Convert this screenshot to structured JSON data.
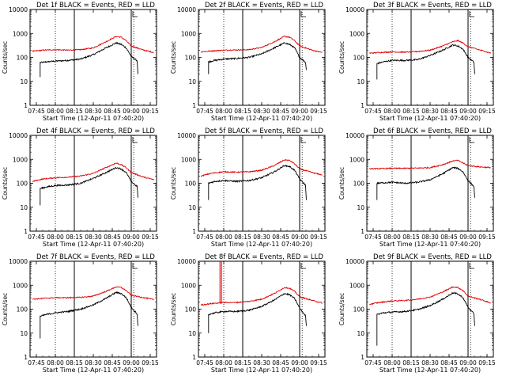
{
  "figure": {
    "layout": "3x3 grid",
    "background": "#ffffff"
  },
  "style": {
    "events_color": "#000000",
    "lld_color": "#e00000",
    "axis_color": "#000000"
  },
  "chart_data": [
    {
      "type": "line",
      "title": "Det 1f BLACK = Events, RED = LLD",
      "xlabel": "Start Time (12-Apr-11 07:40:20)",
      "ylabel": "Counts/sec",
      "yscale": "log",
      "ylim": [
        1,
        10000
      ],
      "xlim": [
        "07:40",
        "09:20"
      ],
      "x_ticks": [
        "07:45",
        "08:00",
        "08:15",
        "08:30",
        "08:45",
        "09:00",
        "09:15"
      ],
      "y_ticks": [
        "1",
        "10",
        "100",
        "1000",
        "10000"
      ],
      "dotted_vlines": [
        "08:00",
        "09:02"
      ],
      "solid_vlines": [
        "08:15",
        "09:00"
      ],
      "legend": "top-right",
      "spike_at": null,
      "series": [
        {
          "name": "Events",
          "color": "#000000",
          "x": [
            "07:48",
            "07:53",
            "08:00",
            "08:10",
            "08:20",
            "08:30",
            "08:40",
            "08:48",
            "08:52",
            "08:56",
            "09:00",
            "09:05"
          ],
          "y": [
            60,
            65,
            70,
            75,
            85,
            130,
            250,
            400,
            350,
            250,
            110,
            70
          ],
          "start_drop": 15,
          "end_drop": 20
        },
        {
          "name": "LLD",
          "color": "#e00000",
          "x": [
            "07:42",
            "07:50",
            "08:00",
            "08:10",
            "08:20",
            "08:30",
            "08:40",
            "08:48",
            "08:52",
            "08:56",
            "09:00",
            "09:10",
            "09:18"
          ],
          "y": [
            180,
            200,
            210,
            200,
            210,
            250,
            450,
            750,
            700,
            500,
            300,
            200,
            160
          ]
        }
      ]
    },
    {
      "type": "line",
      "title": "Det 2f BLACK = Events, RED = LLD",
      "xlabel": "Start Time (12-Apr-11 07:40:20)",
      "ylabel": "Counts/sec",
      "yscale": "log",
      "ylim": [
        1,
        10000
      ],
      "xlim": [
        "07:40",
        "09:20"
      ],
      "x_ticks": [
        "07:45",
        "08:00",
        "08:15",
        "08:30",
        "08:45",
        "09:00",
        "09:15"
      ],
      "y_ticks": [
        "1",
        "10",
        "100",
        "1000",
        "10000"
      ],
      "dotted_vlines": [
        "08:00",
        "09:02"
      ],
      "solid_vlines": [
        "08:15",
        "09:00"
      ],
      "legend": "top-right",
      "spike_at": null,
      "series": [
        {
          "name": "Events",
          "color": "#000000",
          "x": [
            "07:48",
            "07:53",
            "08:00",
            "08:10",
            "08:20",
            "08:30",
            "08:40",
            "08:48",
            "08:52",
            "08:56",
            "09:00",
            "09:05"
          ],
          "y": [
            65,
            75,
            85,
            90,
            100,
            140,
            250,
            400,
            350,
            250,
            100,
            60
          ],
          "start_drop": 20,
          "end_drop": 30
        },
        {
          "name": "LLD",
          "color": "#e00000",
          "x": [
            "07:42",
            "07:50",
            "08:00",
            "08:10",
            "08:20",
            "08:30",
            "08:40",
            "08:48",
            "08:52",
            "08:56",
            "09:00",
            "09:10",
            "09:18"
          ],
          "y": [
            170,
            185,
            200,
            205,
            210,
            260,
            450,
            750,
            700,
            500,
            300,
            200,
            160
          ]
        }
      ]
    },
    {
      "type": "line",
      "title": "Det 3f BLACK = Events, RED = LLD",
      "xlabel": "Start Time (12-Apr-11 07:40:20)",
      "ylabel": "Counts/sec",
      "yscale": "log",
      "ylim": [
        1,
        10000
      ],
      "xlim": [
        "07:40",
        "09:20"
      ],
      "x_ticks": [
        "07:45",
        "08:00",
        "08:15",
        "08:30",
        "08:45",
        "09:00",
        "09:15"
      ],
      "y_ticks": [
        "1",
        "10",
        "100",
        "1000",
        "10000"
      ],
      "dotted_vlines": [
        "08:00",
        "09:02"
      ],
      "solid_vlines": [
        "08:15",
        "09:00"
      ],
      "legend": "top-right",
      "spike_at": null,
      "series": [
        {
          "name": "Events",
          "color": "#000000",
          "x": [
            "07:48",
            "07:53",
            "08:00",
            "08:10",
            "08:20",
            "08:30",
            "08:40",
            "08:48",
            "08:52",
            "08:56",
            "09:00",
            "09:05"
          ],
          "y": [
            55,
            65,
            75,
            75,
            80,
            120,
            200,
            330,
            300,
            220,
            100,
            60
          ],
          "start_drop": 12,
          "end_drop": 20
        },
        {
          "name": "LLD",
          "color": "#e00000",
          "x": [
            "07:42",
            "07:50",
            "08:00",
            "08:10",
            "08:20",
            "08:30",
            "08:40",
            "08:48",
            "08:52",
            "08:56",
            "09:00",
            "09:10",
            "09:18"
          ],
          "y": [
            150,
            160,
            170,
            165,
            175,
            200,
            300,
            450,
            500,
            400,
            280,
            200,
            150
          ]
        }
      ]
    },
    {
      "type": "line",
      "title": "Det 4f BLACK = Events, RED = LLD",
      "xlabel": "Start Time (12-Apr-11 07:40:20)",
      "ylabel": "Counts/sec",
      "yscale": "log",
      "ylim": [
        1,
        10000
      ],
      "xlim": [
        "07:40",
        "09:20"
      ],
      "x_ticks": [
        "07:45",
        "08:00",
        "08:15",
        "08:30",
        "08:45",
        "09:00",
        "09:15"
      ],
      "y_ticks": [
        "1",
        "10",
        "100",
        "1000",
        "10000"
      ],
      "dotted_vlines": [
        "08:00",
        "09:02"
      ],
      "solid_vlines": [
        "08:15",
        "09:00"
      ],
      "legend": "top-right",
      "spike_at": null,
      "series": [
        {
          "name": "Events",
          "color": "#000000",
          "x": [
            "07:48",
            "07:53",
            "08:00",
            "08:10",
            "08:20",
            "08:30",
            "08:40",
            "08:48",
            "08:52",
            "08:56",
            "09:00",
            "09:05"
          ],
          "y": [
            60,
            70,
            80,
            85,
            100,
            160,
            280,
            450,
            400,
            280,
            120,
            70
          ],
          "start_drop": 12,
          "end_drop": 25
        },
        {
          "name": "LLD",
          "color": "#e00000",
          "x": [
            "07:42",
            "07:50",
            "08:00",
            "08:10",
            "08:20",
            "08:30",
            "08:40",
            "08:48",
            "08:52",
            "08:56",
            "09:00",
            "09:10",
            "09:18"
          ],
          "y": [
            120,
            150,
            170,
            180,
            200,
            260,
            450,
            700,
            600,
            450,
            280,
            180,
            140
          ]
        }
      ]
    },
    {
      "type": "line",
      "title": "Det 5f BLACK = Events, RED = LLD",
      "xlabel": "Start Time (12-Apr-11 07:40:20)",
      "ylabel": "Counts/sec",
      "yscale": "log",
      "ylim": [
        1,
        10000
      ],
      "xlim": [
        "07:40",
        "09:20"
      ],
      "x_ticks": [
        "07:45",
        "08:00",
        "08:15",
        "08:30",
        "08:45",
        "09:00",
        "09:15"
      ],
      "y_ticks": [
        "1",
        "10",
        "100",
        "1000",
        "10000"
      ],
      "dotted_vlines": [
        "08:00",
        "09:02"
      ],
      "solid_vlines": [
        "08:15",
        "09:00"
      ],
      "legend": "top-right",
      "spike_at": null,
      "series": [
        {
          "name": "Events",
          "color": "#000000",
          "x": [
            "07:48",
            "07:53",
            "08:00",
            "08:10",
            "08:20",
            "08:30",
            "08:40",
            "08:48",
            "08:52",
            "08:56",
            "09:00",
            "09:05"
          ],
          "y": [
            100,
            120,
            130,
            120,
            130,
            170,
            300,
            550,
            500,
            350,
            150,
            80
          ],
          "start_drop": 20,
          "end_drop": 20
        },
        {
          "name": "LLD",
          "color": "#e00000",
          "x": [
            "07:42",
            "07:50",
            "08:00",
            "08:10",
            "08:20",
            "08:30",
            "08:40",
            "08:48",
            "08:52",
            "08:56",
            "09:00",
            "09:10",
            "09:18"
          ],
          "y": [
            200,
            260,
            300,
            290,
            300,
            350,
            550,
            950,
            900,
            650,
            400,
            280,
            220
          ]
        }
      ]
    },
    {
      "type": "line",
      "title": "Det 6f BLACK = Events, RED = LLD",
      "xlabel": "Start Time (12-Apr-11 07:40:20)",
      "ylabel": "Counts/sec",
      "yscale": "log",
      "ylim": [
        1,
        10000
      ],
      "xlim": [
        "07:40",
        "09:20"
      ],
      "x_ticks": [
        "07:45",
        "08:00",
        "08:15",
        "08:30",
        "08:45",
        "09:00",
        "09:15"
      ],
      "y_ticks": [
        "1",
        "10",
        "100",
        "1000",
        "10000"
      ],
      "dotted_vlines": [
        "08:00",
        "09:02"
      ],
      "solid_vlines": [
        "08:15",
        "09:00"
      ],
      "legend": "top-right",
      "spike_at": null,
      "series": [
        {
          "name": "Events",
          "color": "#000000",
          "x": [
            "07:48",
            "07:53",
            "08:00",
            "08:10",
            "08:20",
            "08:30",
            "08:40",
            "08:48",
            "08:52",
            "08:56",
            "09:00",
            "09:05"
          ],
          "y": [
            100,
            105,
            110,
            100,
            110,
            140,
            250,
            450,
            420,
            300,
            130,
            70
          ],
          "start_drop": 20,
          "end_drop": 25
        },
        {
          "name": "LLD",
          "color": "#e00000",
          "x": [
            "07:42",
            "07:50",
            "08:00",
            "08:10",
            "08:20",
            "08:30",
            "08:40",
            "08:48",
            "08:52",
            "08:56",
            "09:00",
            "09:10",
            "09:18"
          ],
          "y": [
            400,
            410,
            420,
            420,
            430,
            450,
            600,
            850,
            900,
            700,
            550,
            480,
            450
          ]
        }
      ]
    },
    {
      "type": "line",
      "title": "Det 7f BLACK = Events, RED = LLD",
      "xlabel": "Start Time (12-Apr-11 07:40:20)",
      "ylabel": "Counts/sec",
      "yscale": "log",
      "ylim": [
        1,
        10000
      ],
      "xlim": [
        "07:40",
        "09:20"
      ],
      "x_ticks": [
        "07:45",
        "08:00",
        "08:15",
        "08:30",
        "08:45",
        "09:00",
        "09:15"
      ],
      "y_ticks": [
        "1",
        "10",
        "100",
        "1000",
        "10000"
      ],
      "dotted_vlines": [
        "08:00",
        "09:02"
      ],
      "solid_vlines": [
        "08:15",
        "09:00"
      ],
      "legend": "top-right",
      "spike_at": null,
      "series": [
        {
          "name": "Events",
          "color": "#000000",
          "x": [
            "07:48",
            "07:53",
            "08:00",
            "08:10",
            "08:20",
            "08:30",
            "08:40",
            "08:48",
            "08:52",
            "08:56",
            "09:00",
            "09:05"
          ],
          "y": [
            50,
            60,
            70,
            80,
            100,
            150,
            280,
            500,
            450,
            300,
            120,
            60
          ],
          "start_drop": 6,
          "end_drop": 20
        },
        {
          "name": "LLD",
          "color": "#e00000",
          "x": [
            "07:42",
            "07:50",
            "08:00",
            "08:10",
            "08:20",
            "08:30",
            "08:40",
            "08:48",
            "08:52",
            "08:56",
            "09:00",
            "09:10",
            "09:18"
          ],
          "y": [
            260,
            280,
            300,
            300,
            310,
            350,
            550,
            850,
            800,
            600,
            380,
            300,
            250
          ]
        }
      ]
    },
    {
      "type": "line",
      "title": "Det 8f BLACK = Events, RED = LLD",
      "xlabel": "Start Time (12-Apr-11 07:40:20)",
      "ylabel": "Counts/sec",
      "yscale": "log",
      "ylim": [
        1,
        10000
      ],
      "xlim": [
        "07:40",
        "09:20"
      ],
      "x_ticks": [
        "07:45",
        "08:00",
        "08:15",
        "08:30",
        "08:45",
        "09:00",
        "09:15"
      ],
      "y_ticks": [
        "1",
        "10",
        "100",
        "1000",
        "10000"
      ],
      "dotted_vlines": [
        "08:00",
        "09:02"
      ],
      "solid_vlines": [
        "08:15",
        "09:00"
      ],
      "legend": "top-right",
      "spike_at": "07:57",
      "series": [
        {
          "name": "Events",
          "color": "#000000",
          "x": [
            "07:48",
            "07:53",
            "08:00",
            "08:10",
            "08:20",
            "08:30",
            "08:40",
            "08:48",
            "08:52",
            "08:56",
            "09:00",
            "09:05"
          ],
          "y": [
            60,
            70,
            80,
            80,
            90,
            130,
            240,
            450,
            400,
            280,
            110,
            50
          ],
          "start_drop": 10,
          "end_drop": 20
        },
        {
          "name": "LLD",
          "color": "#e00000",
          "x": [
            "07:42",
            "07:50",
            "08:00",
            "08:10",
            "08:20",
            "08:30",
            "08:40",
            "08:48",
            "08:52",
            "08:56",
            "09:00",
            "09:10",
            "09:18"
          ],
          "y": [
            150,
            170,
            190,
            190,
            210,
            260,
            450,
            800,
            750,
            550,
            330,
            230,
            180
          ]
        }
      ]
    },
    {
      "type": "line",
      "title": "Det 9f BLACK = Events, RED = LLD",
      "xlabel": "Start Time (12-Apr-11 07:40:20)",
      "ylabel": "Counts/sec",
      "yscale": "log",
      "ylim": [
        1,
        10000
      ],
      "xlim": [
        "07:40",
        "09:20"
      ],
      "x_ticks": [
        "07:45",
        "08:00",
        "08:15",
        "08:30",
        "08:45",
        "09:00",
        "09:15"
      ],
      "y_ticks": [
        "1",
        "10",
        "100",
        "1000",
        "10000"
      ],
      "dotted_vlines": [
        "08:00",
        "09:02"
      ],
      "solid_vlines": [
        "08:15",
        "09:00"
      ],
      "legend": "top-right",
      "spike_at": null,
      "series": [
        {
          "name": "Events",
          "color": "#000000",
          "x": [
            "07:48",
            "07:53",
            "08:00",
            "08:10",
            "08:20",
            "08:30",
            "08:40",
            "08:48",
            "08:52",
            "08:56",
            "09:00",
            "09:05"
          ],
          "y": [
            60,
            70,
            75,
            80,
            95,
            140,
            260,
            480,
            430,
            300,
            120,
            60
          ],
          "start_drop": 3,
          "end_drop": 20
        },
        {
          "name": "LLD",
          "color": "#e00000",
          "x": [
            "07:42",
            "07:50",
            "08:00",
            "08:10",
            "08:20",
            "08:30",
            "08:40",
            "08:48",
            "08:52",
            "08:56",
            "09:00",
            "09:10",
            "09:18"
          ],
          "y": [
            160,
            190,
            220,
            230,
            260,
            320,
            520,
            850,
            800,
            600,
            350,
            250,
            180
          ]
        }
      ]
    }
  ]
}
